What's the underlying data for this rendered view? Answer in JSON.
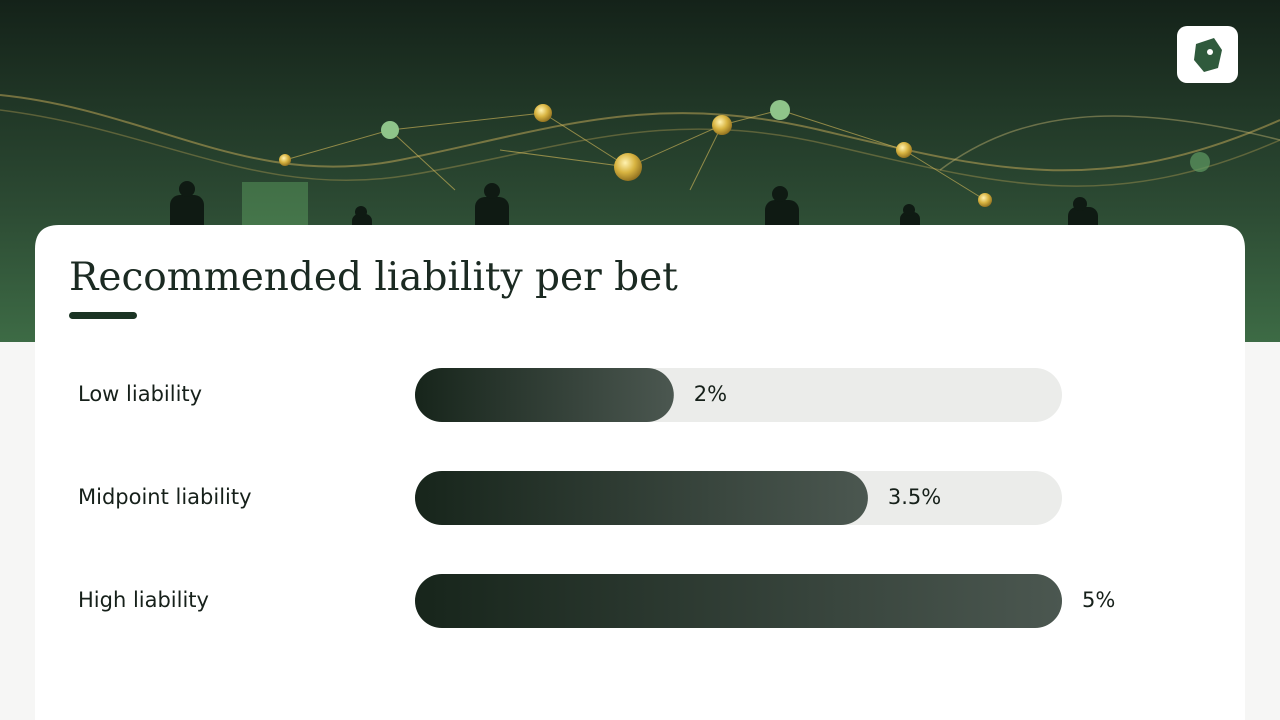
{
  "chart_data": {
    "type": "bar",
    "orientation": "horizontal",
    "title": "Recommended liability per bet",
    "categories": [
      "Low liability",
      "Midpoint liability",
      "High liability"
    ],
    "values": [
      2,
      3.5,
      5
    ],
    "value_labels": [
      "2%",
      "3.5%",
      "5%"
    ],
    "xlim": [
      0,
      5
    ],
    "colors": [
      "#17251b",
      "#4b5750"
    ],
    "track_color": "#ebecea"
  }
}
